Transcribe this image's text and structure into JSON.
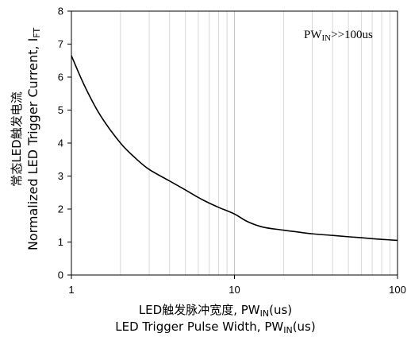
{
  "chart_data": {
    "type": "line",
    "x_scale": "log",
    "y_scale": "linear",
    "xlim": [
      1,
      100
    ],
    "ylim": [
      0,
      8
    ],
    "x_ticks": [
      "1",
      "10",
      "100"
    ],
    "y_ticks": [
      "0",
      "1",
      "2",
      "3",
      "4",
      "5",
      "6",
      "7",
      "8"
    ],
    "grid": {
      "vertical_minor": true,
      "horizontal": false
    },
    "xlabel_line1": {
      "main": "LED触发脉冲宽度, PW",
      "sub": "IN",
      "tail": "(us)"
    },
    "xlabel_line2": {
      "main": "LED Trigger Pulse Width, PW",
      "sub": "IN",
      "tail": "(us)"
    },
    "ylabel_line1": "常态LED触发电流",
    "ylabel_line2": {
      "main": "Normalized LED Trigger Current, I",
      "sub": "FT"
    },
    "annotation": {
      "main": "PW",
      "sub": "IN",
      "tail": ">>100us",
      "position": "top-right"
    },
    "series": [
      {
        "x": [
          1,
          1.2,
          1.5,
          2,
          2.5,
          3,
          4,
          5,
          6,
          7,
          8,
          10,
          12,
          15,
          20,
          30,
          40,
          50,
          60,
          70,
          80,
          100
        ],
        "values": [
          6.65,
          5.75,
          4.85,
          4.0,
          3.52,
          3.2,
          2.85,
          2.58,
          2.35,
          2.18,
          2.05,
          1.85,
          1.62,
          1.45,
          1.36,
          1.25,
          1.2,
          1.16,
          1.13,
          1.1,
          1.08,
          1.05
        ]
      }
    ]
  }
}
